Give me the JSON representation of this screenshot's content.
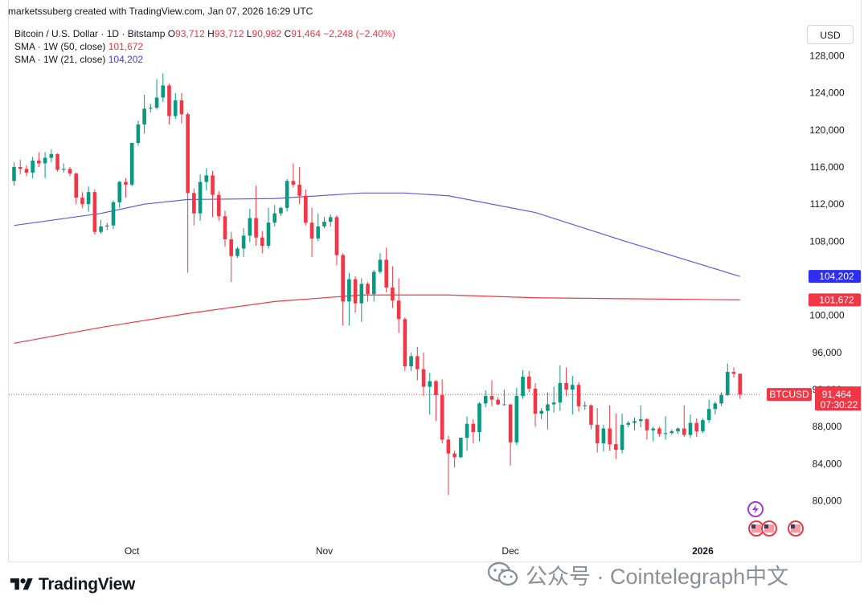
{
  "attribution": "marketssuberg created with TradingView.com, Jan 07, 2026 16:29 UTC",
  "legend": {
    "symbol": "Bitcoin / U.S. Dollar · 1D · Bitstamp",
    "o_label": "O",
    "o_value": "93,712",
    "h_label": "H",
    "h_value": "93,712",
    "l_label": "L",
    "l_value": "90,982",
    "c_label": "C",
    "c_value": "91,464",
    "change": "−2,248 (−2.40%)",
    "sma50_label": "SMA · 1W (50, close)",
    "sma50_value": "101,672",
    "sma21_label": "SMA · 1W (21, close)",
    "sma21_value": "104,202"
  },
  "currency_button": "USD",
  "price_tags": {
    "sma21": "104,202",
    "sma50": "101,672",
    "symbol": "BTCUSD",
    "last": "91,464",
    "countdown": "07:30:22"
  },
  "branding": {
    "logo_text": "TradingView",
    "watermark_text": "公众号 · Cointelegraph中文"
  },
  "colors": {
    "up": "#089981",
    "down": "#f23645",
    "sma21": "#5b5be8",
    "sma50": "#f23645",
    "grid": "#f0f3fa",
    "axis_text": "#131722"
  },
  "icons": [
    "lightning-event-icon",
    "us-flag-icon",
    "us-flag-icon",
    "us-flag-icon"
  ],
  "chart_data": {
    "type": "candlestick",
    "title": "Bitcoin / U.S. Dollar · 1D · Bitstamp",
    "x_tick_labels": [
      "Oct",
      "Nov",
      "Dec",
      "2026"
    ],
    "y_tick_labels": [
      "80,000",
      "84,000",
      "88,000",
      "92,000",
      "96,000",
      "100,000",
      "104,000",
      "108,000",
      "112,000",
      "116,000",
      "120,000",
      "124,000",
      "128,000"
    ],
    "ylim": [
      75000,
      131500
    ],
    "grid": false,
    "date_range": [
      "2025-09-12",
      "2026-01-07"
    ],
    "candles": [
      {
        "date": "2025-09-12",
        "o": 114500,
        "h": 116500,
        "l": 114000,
        "c": 116000
      },
      {
        "date": "2025-09-13",
        "o": 116000,
        "h": 116800,
        "l": 115200,
        "c": 115800
      },
      {
        "date": "2025-09-14",
        "o": 115800,
        "h": 116200,
        "l": 115000,
        "c": 115400
      },
      {
        "date": "2025-09-15",
        "o": 115400,
        "h": 117100,
        "l": 114800,
        "c": 116700
      },
      {
        "date": "2025-09-16",
        "o": 116700,
        "h": 117600,
        "l": 116000,
        "c": 116400
      },
      {
        "date": "2025-09-17",
        "o": 116400,
        "h": 117600,
        "l": 114800,
        "c": 117000
      },
      {
        "date": "2025-09-18",
        "o": 117000,
        "h": 117900,
        "l": 116500,
        "c": 117400
      },
      {
        "date": "2025-09-19",
        "o": 117400,
        "h": 117500,
        "l": 115500,
        "c": 115700
      },
      {
        "date": "2025-09-20",
        "o": 115700,
        "h": 116400,
        "l": 115400,
        "c": 115800
      },
      {
        "date": "2025-09-21",
        "o": 115800,
        "h": 116000,
        "l": 115000,
        "c": 115300
      },
      {
        "date": "2025-09-22",
        "o": 115300,
        "h": 115400,
        "l": 112000,
        "c": 112700
      },
      {
        "date": "2025-09-23",
        "o": 112700,
        "h": 113300,
        "l": 111600,
        "c": 112000
      },
      {
        "date": "2025-09-24",
        "o": 112000,
        "h": 113900,
        "l": 111200,
        "c": 113300
      },
      {
        "date": "2025-09-25",
        "o": 113300,
        "h": 113600,
        "l": 108700,
        "c": 109000
      },
      {
        "date": "2025-09-26",
        "o": 109000,
        "h": 110300,
        "l": 108800,
        "c": 109600
      },
      {
        "date": "2025-09-27",
        "o": 109600,
        "h": 110000,
        "l": 109200,
        "c": 109700
      },
      {
        "date": "2025-09-28",
        "o": 109700,
        "h": 112400,
        "l": 109300,
        "c": 112200
      },
      {
        "date": "2025-09-29",
        "o": 112200,
        "h": 114500,
        "l": 111600,
        "c": 114400
      },
      {
        "date": "2025-09-30",
        "o": 114400,
        "h": 114800,
        "l": 112700,
        "c": 114100
      },
      {
        "date": "2025-10-01",
        "o": 114100,
        "h": 118600,
        "l": 113900,
        "c": 118600
      },
      {
        "date": "2025-10-02",
        "o": 118600,
        "h": 121000,
        "l": 118300,
        "c": 120600
      },
      {
        "date": "2025-10-03",
        "o": 120600,
        "h": 123800,
        "l": 119600,
        "c": 122300
      },
      {
        "date": "2025-10-04",
        "o": 122300,
        "h": 122800,
        "l": 121900,
        "c": 122400
      },
      {
        "date": "2025-10-05",
        "o": 122400,
        "h": 125500,
        "l": 122200,
        "c": 123500
      },
      {
        "date": "2025-10-06",
        "o": 123500,
        "h": 126100,
        "l": 123000,
        "c": 124800
      },
      {
        "date": "2025-10-07",
        "o": 124800,
        "h": 125000,
        "l": 120600,
        "c": 121500
      },
      {
        "date": "2025-10-08",
        "o": 121500,
        "h": 124000,
        "l": 121200,
        "c": 123200
      },
      {
        "date": "2025-10-09",
        "o": 123200,
        "h": 124000,
        "l": 120700,
        "c": 121700
      },
      {
        "date": "2025-10-10",
        "o": 121700,
        "h": 121900,
        "l": 104600,
        "c": 113200
      },
      {
        "date": "2025-10-11",
        "o": 113200,
        "h": 113700,
        "l": 109700,
        "c": 111000
      },
      {
        "date": "2025-10-12",
        "o": 111000,
        "h": 115200,
        "l": 110200,
        "c": 114400
      },
      {
        "date": "2025-10-13",
        "o": 114400,
        "h": 115900,
        "l": 113500,
        "c": 115100
      },
      {
        "date": "2025-10-14",
        "o": 115100,
        "h": 115600,
        "l": 110600,
        "c": 113000
      },
      {
        "date": "2025-10-15",
        "o": 113000,
        "h": 113400,
        "l": 110200,
        "c": 110700
      },
      {
        "date": "2025-10-16",
        "o": 110700,
        "h": 111300,
        "l": 107400,
        "c": 108200
      },
      {
        "date": "2025-10-17",
        "o": 108200,
        "h": 109000,
        "l": 103600,
        "c": 106400
      },
      {
        "date": "2025-10-18",
        "o": 106400,
        "h": 107400,
        "l": 106200,
        "c": 107200
      },
      {
        "date": "2025-10-19",
        "o": 107200,
        "h": 109400,
        "l": 106300,
        "c": 108600
      },
      {
        "date": "2025-10-20",
        "o": 108600,
        "h": 111500,
        "l": 107900,
        "c": 110500
      },
      {
        "date": "2025-10-21",
        "o": 110500,
        "h": 114000,
        "l": 107500,
        "c": 108400
      },
      {
        "date": "2025-10-22",
        "o": 108400,
        "h": 109100,
        "l": 106700,
        "c": 107500
      },
      {
        "date": "2025-10-23",
        "o": 107500,
        "h": 111600,
        "l": 107200,
        "c": 110000
      },
      {
        "date": "2025-10-24",
        "o": 110000,
        "h": 111900,
        "l": 109600,
        "c": 111000
      },
      {
        "date": "2025-10-25",
        "o": 111000,
        "h": 111700,
        "l": 110700,
        "c": 111600
      },
      {
        "date": "2025-10-26",
        "o": 111600,
        "h": 114700,
        "l": 111200,
        "c": 114500
      },
      {
        "date": "2025-10-27",
        "o": 114500,
        "h": 116400,
        "l": 113800,
        "c": 114100
      },
      {
        "date": "2025-10-28",
        "o": 114100,
        "h": 116000,
        "l": 112000,
        "c": 112900
      },
      {
        "date": "2025-10-29",
        "o": 112900,
        "h": 113600,
        "l": 109700,
        "c": 110000
      },
      {
        "date": "2025-10-30",
        "o": 110000,
        "h": 111600,
        "l": 106300,
        "c": 108300
      },
      {
        "date": "2025-10-31",
        "o": 108300,
        "h": 111000,
        "l": 108000,
        "c": 109600
      },
      {
        "date": "2025-11-01",
        "o": 109600,
        "h": 110600,
        "l": 109400,
        "c": 110100
      },
      {
        "date": "2025-11-02",
        "o": 110100,
        "h": 110900,
        "l": 109600,
        "c": 110600
      },
      {
        "date": "2025-11-03",
        "o": 110600,
        "h": 110800,
        "l": 105400,
        "c": 106500
      },
      {
        "date": "2025-11-04",
        "o": 106500,
        "h": 106700,
        "l": 98900,
        "c": 101500
      },
      {
        "date": "2025-11-05",
        "o": 101500,
        "h": 104600,
        "l": 98900,
        "c": 103900
      },
      {
        "date": "2025-11-06",
        "o": 103900,
        "h": 104200,
        "l": 100300,
        "c": 101300
      },
      {
        "date": "2025-11-07",
        "o": 101300,
        "h": 104000,
        "l": 99300,
        "c": 103400
      },
      {
        "date": "2025-11-08",
        "o": 103400,
        "h": 103600,
        "l": 101500,
        "c": 102300
      },
      {
        "date": "2025-11-09",
        "o": 102300,
        "h": 104900,
        "l": 101500,
        "c": 104700
      },
      {
        "date": "2025-11-10",
        "o": 104700,
        "h": 106700,
        "l": 104500,
        "c": 106000
      },
      {
        "date": "2025-11-11",
        "o": 106000,
        "h": 107300,
        "l": 102500,
        "c": 103000
      },
      {
        "date": "2025-11-12",
        "o": 103000,
        "h": 105300,
        "l": 100800,
        "c": 101600
      },
      {
        "date": "2025-11-13",
        "o": 101600,
        "h": 104000,
        "l": 98100,
        "c": 99600
      },
      {
        "date": "2025-11-14",
        "o": 99600,
        "h": 99800,
        "l": 94000,
        "c": 94500
      },
      {
        "date": "2025-11-15",
        "o": 94500,
        "h": 96000,
        "l": 94000,
        "c": 95600
      },
      {
        "date": "2025-11-16",
        "o": 95600,
        "h": 96600,
        "l": 93000,
        "c": 94200
      },
      {
        "date": "2025-11-17",
        "o": 94200,
        "h": 96000,
        "l": 91300,
        "c": 92300
      },
      {
        "date": "2025-11-18",
        "o": 92300,
        "h": 93800,
        "l": 89300,
        "c": 92900
      },
      {
        "date": "2025-11-19",
        "o": 92900,
        "h": 93000,
        "l": 88600,
        "c": 91400
      },
      {
        "date": "2025-11-20",
        "o": 91400,
        "h": 93100,
        "l": 86200,
        "c": 86600
      },
      {
        "date": "2025-11-21",
        "o": 86600,
        "h": 87000,
        "l": 80600,
        "c": 85100
      },
      {
        "date": "2025-11-22",
        "o": 85100,
        "h": 85400,
        "l": 83600,
        "c": 84700
      },
      {
        "date": "2025-11-23",
        "o": 84700,
        "h": 86800,
        "l": 84600,
        "c": 86800
      },
      {
        "date": "2025-11-24",
        "o": 86800,
        "h": 89100,
        "l": 85400,
        "c": 88300
      },
      {
        "date": "2025-11-25",
        "o": 88300,
        "h": 88800,
        "l": 86200,
        "c": 87400
      },
      {
        "date": "2025-11-26",
        "o": 87400,
        "h": 90600,
        "l": 86400,
        "c": 90500
      },
      {
        "date": "2025-11-27",
        "o": 90500,
        "h": 91900,
        "l": 90100,
        "c": 91300
      },
      {
        "date": "2025-11-28",
        "o": 91300,
        "h": 93000,
        "l": 90200,
        "c": 90900
      },
      {
        "date": "2025-11-29",
        "o": 90900,
        "h": 91200,
        "l": 90300,
        "c": 90400
      },
      {
        "date": "2025-11-30",
        "o": 90400,
        "h": 92000,
        "l": 90300,
        "c": 90400
      },
      {
        "date": "2025-12-01",
        "o": 90400,
        "h": 90400,
        "l": 83800,
        "c": 86300
      },
      {
        "date": "2025-12-02",
        "o": 86300,
        "h": 92200,
        "l": 86000,
        "c": 91300
      },
      {
        "date": "2025-12-03",
        "o": 91300,
        "h": 94100,
        "l": 91000,
        "c": 93400
      },
      {
        "date": "2025-12-04",
        "o": 93400,
        "h": 94000,
        "l": 91700,
        "c": 92100
      },
      {
        "date": "2025-12-05",
        "o": 92100,
        "h": 92700,
        "l": 88000,
        "c": 89400
      },
      {
        "date": "2025-12-06",
        "o": 89400,
        "h": 90000,
        "l": 88800,
        "c": 89700
      },
      {
        "date": "2025-12-07",
        "o": 89700,
        "h": 91700,
        "l": 87700,
        "c": 90400
      },
      {
        "date": "2025-12-08",
        "o": 90400,
        "h": 92300,
        "l": 89500,
        "c": 90600
      },
      {
        "date": "2025-12-09",
        "o": 90600,
        "h": 94600,
        "l": 89700,
        "c": 92700
      },
      {
        "date": "2025-12-10",
        "o": 92700,
        "h": 94400,
        "l": 91300,
        "c": 92000
      },
      {
        "date": "2025-12-11",
        "o": 92000,
        "h": 93500,
        "l": 89300,
        "c": 92500
      },
      {
        "date": "2025-12-12",
        "o": 92500,
        "h": 92800,
        "l": 89600,
        "c": 90200
      },
      {
        "date": "2025-12-13",
        "o": 90200,
        "h": 90700,
        "l": 89800,
        "c": 90300
      },
      {
        "date": "2025-12-14",
        "o": 90300,
        "h": 90400,
        "l": 87700,
        "c": 88200
      },
      {
        "date": "2025-12-15",
        "o": 88200,
        "h": 90000,
        "l": 85200,
        "c": 86200
      },
      {
        "date": "2025-12-16",
        "o": 86200,
        "h": 88200,
        "l": 85300,
        "c": 87800
      },
      {
        "date": "2025-12-17",
        "o": 87800,
        "h": 90300,
        "l": 85400,
        "c": 86100
      },
      {
        "date": "2025-12-18",
        "o": 86100,
        "h": 89400,
        "l": 84500,
        "c": 85500
      },
      {
        "date": "2025-12-19",
        "o": 85500,
        "h": 89400,
        "l": 85100,
        "c": 88200
      },
      {
        "date": "2025-12-20",
        "o": 88200,
        "h": 88600,
        "l": 87900,
        "c": 88400
      },
      {
        "date": "2025-12-21",
        "o": 88400,
        "h": 89000,
        "l": 87600,
        "c": 88600
      },
      {
        "date": "2025-12-22",
        "o": 88600,
        "h": 90300,
        "l": 87900,
        "c": 88800
      },
      {
        "date": "2025-12-23",
        "o": 88800,
        "h": 88900,
        "l": 86600,
        "c": 87600
      },
      {
        "date": "2025-12-24",
        "o": 87600,
        "h": 88000,
        "l": 86400,
        "c": 87800
      },
      {
        "date": "2025-12-25",
        "o": 87800,
        "h": 88000,
        "l": 86900,
        "c": 87200
      },
      {
        "date": "2025-12-26",
        "o": 87200,
        "h": 89100,
        "l": 86600,
        "c": 87300
      },
      {
        "date": "2025-12-27",
        "o": 87300,
        "h": 87700,
        "l": 87100,
        "c": 87500
      },
      {
        "date": "2025-12-28",
        "o": 87500,
        "h": 87900,
        "l": 87200,
        "c": 87800
      },
      {
        "date": "2025-12-29",
        "o": 87800,
        "h": 90300,
        "l": 86900,
        "c": 87100
      },
      {
        "date": "2025-12-30",
        "o": 87100,
        "h": 89300,
        "l": 86800,
        "c": 88400
      },
      {
        "date": "2025-12-31",
        "o": 88400,
        "h": 88900,
        "l": 86900,
        "c": 87500
      },
      {
        "date": "2026-01-01",
        "o": 87500,
        "h": 88900,
        "l": 87300,
        "c": 88700
      },
      {
        "date": "2026-01-02",
        "o": 88700,
        "h": 90900,
        "l": 88400,
        "c": 89900
      },
      {
        "date": "2026-01-03",
        "o": 89900,
        "h": 90700,
        "l": 89300,
        "c": 90500
      },
      {
        "date": "2026-01-04",
        "o": 90500,
        "h": 91700,
        "l": 90200,
        "c": 91400
      },
      {
        "date": "2026-01-05",
        "o": 91400,
        "h": 94800,
        "l": 91300,
        "c": 93900
      },
      {
        "date": "2026-01-06",
        "o": 93900,
        "h": 94400,
        "l": 93300,
        "c": 93700
      },
      {
        "date": "2026-01-07",
        "o": 93712,
        "h": 93712,
        "l": 90982,
        "c": 91464
      }
    ],
    "series": [
      {
        "name": "SMA · 1W (21, close)",
        "color": "#5b5be8",
        "points": [
          {
            "date": "2025-09-12",
            "value": 109700
          },
          {
            "date": "2025-09-26",
            "value": 111000
          },
          {
            "date": "2025-10-03",
            "value": 112000
          },
          {
            "date": "2025-10-10",
            "value": 112500
          },
          {
            "date": "2025-10-24",
            "value": 112600
          },
          {
            "date": "2025-11-07",
            "value": 113200
          },
          {
            "date": "2025-11-14",
            "value": 113200
          },
          {
            "date": "2025-11-21",
            "value": 112900
          },
          {
            "date": "2025-12-05",
            "value": 111100
          },
          {
            "date": "2025-12-19",
            "value": 108100
          },
          {
            "date": "2026-01-07",
            "value": 104202
          }
        ]
      },
      {
        "name": "SMA · 1W (50, close)",
        "color": "#f23645",
        "points": [
          {
            "date": "2025-09-12",
            "value": 97000
          },
          {
            "date": "2025-09-26",
            "value": 98700
          },
          {
            "date": "2025-10-10",
            "value": 100200
          },
          {
            "date": "2025-10-24",
            "value": 101500
          },
          {
            "date": "2025-11-07",
            "value": 102200
          },
          {
            "date": "2025-11-21",
            "value": 102200
          },
          {
            "date": "2025-12-05",
            "value": 101900
          },
          {
            "date": "2026-01-07",
            "value": 101672
          }
        ]
      }
    ],
    "last_price": 91464
  }
}
